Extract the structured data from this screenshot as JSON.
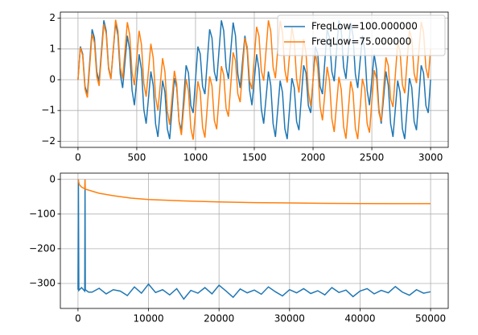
{
  "chart_data": [
    {
      "type": "line",
      "grid": true,
      "legend": "upper right",
      "x": [
        0,
        20,
        40,
        60,
        80,
        100,
        120,
        140,
        160,
        180,
        200,
        220,
        240,
        260,
        280,
        300,
        320,
        340,
        360,
        380,
        400,
        420,
        440,
        460,
        480,
        500,
        520,
        540,
        560,
        580,
        600,
        620,
        640,
        660,
        680,
        700,
        720,
        740,
        760,
        780,
        800,
        820,
        840,
        860,
        880,
        900,
        920,
        940,
        960,
        980,
        1000,
        1020,
        1040,
        1060,
        1080,
        1100,
        1120,
        1140,
        1160,
        1180,
        1200,
        1220,
        1240,
        1260,
        1280,
        1300,
        1320,
        1340,
        1360,
        1380,
        1400,
        1420,
        1440,
        1460,
        1480,
        1500,
        1520,
        1540,
        1560,
        1580,
        1600,
        1620,
        1640,
        1660,
        1680,
        1700,
        1720,
        1740,
        1760,
        1780,
        1800,
        1820,
        1840,
        1860,
        1880,
        1900,
        1920,
        1940,
        1960,
        1980,
        2000,
        2020,
        2040,
        2060,
        2080,
        2100,
        2120,
        2140,
        2160,
        2180,
        2200,
        2220,
        2240,
        2260,
        2280,
        2300,
        2320,
        2340,
        2360,
        2380,
        2400,
        2420,
        2440,
        2460,
        2480,
        2500,
        2520,
        2540,
        2560,
        2580,
        2600,
        2620,
        2640,
        2660,
        2680,
        2700,
        2720,
        2740,
        2760,
        2780,
        2800,
        2820,
        2840,
        2860,
        2880,
        2900,
        2920,
        2940,
        2960,
        2980,
        3000
      ],
      "series": [
        {
          "name": "FreqLow=100.000000",
          "color": "#1f77b4",
          "values": [
            0,
            1.08,
            0.84,
            -0.22,
            -0.47,
            0.59,
            1.64,
            1.36,
            0.26,
            -0.05,
            0.95,
            1.93,
            1.59,
            0.41,
            0.03,
            0.95,
            1.86,
            1.43,
            0.18,
            -0.27,
            0.59,
            1.43,
            0.96,
            -0.34,
            -0.83,
            0,
            0.83,
            0.34,
            -0.96,
            -1.43,
            -0.59,
            0.27,
            -0.18,
            -1.43,
            -1.86,
            -0.95,
            -0.03,
            -0.41,
            -1.59,
            -1.93,
            -0.95,
            0.05,
            -0.26,
            -1.36,
            -1.64,
            -0.59,
            0.47,
            0.22,
            -0.84,
            -1.08,
            0,
            1.08,
            0.84,
            -0.22,
            -0.47,
            0.59,
            1.64,
            1.36,
            0.26,
            -0.05,
            0.95,
            1.93,
            1.59,
            0.41,
            0.03,
            0.95,
            1.86,
            1.43,
            0.18,
            -0.27,
            0.59,
            1.43,
            0.96,
            -0.34,
            -0.83,
            0,
            0.83,
            0.34,
            -0.96,
            -1.43,
            -0.59,
            0.27,
            -0.18,
            -1.43,
            -1.86,
            -0.95,
            -0.03,
            -0.41,
            -1.59,
            -1.93,
            -0.95,
            0.05,
            -0.26,
            -1.36,
            -1.64,
            -0.59,
            0.47,
            0.22,
            -0.84,
            -1.08,
            0,
            1.08,
            0.84,
            -0.22,
            -0.47,
            0.59,
            1.64,
            1.36,
            0.26,
            -0.05,
            0.95,
            1.93,
            1.59,
            0.41,
            0.03,
            0.95,
            1.86,
            1.43,
            0.18,
            -0.27,
            0.59,
            1.43,
            0.96,
            -0.34,
            -0.83,
            0,
            0.83,
            0.34,
            -0.96,
            -1.43,
            -0.59,
            0.27,
            -0.18,
            -1.43,
            -1.86,
            -0.95,
            -0.03,
            -0.41,
            -1.59,
            -1.93,
            -0.95,
            0.05,
            -0.26,
            -1.36,
            -1.64,
            -0.59,
            0.47,
            0.22,
            -0.84,
            -1.08,
            0
          ]
        },
        {
          "name": "FreqLow=75.000000",
          "color": "#ff7f0e",
          "values": [
            0,
            1.05,
            0.78,
            -0.31,
            -0.58,
            0.45,
            1.49,
            1.2,
            0.1,
            -0.2,
            0.81,
            1.81,
            1.49,
            0.35,
            0.02,
            0.99,
            1.95,
            1.59,
            0.4,
            0.03,
            0.95,
            1.87,
            1.46,
            0.24,
            -0.18,
            0.71,
            1.59,
            1.15,
            -0.11,
            -0.55,
            0.31,
            1.17,
            0.71,
            -0.56,
            -1.01,
            -0.16,
            0.7,
            0.25,
            -1.01,
            -1.46,
            -0.59,
            0.29,
            -0.14,
            -1.38,
            -1.8,
            -0.89,
            0.02,
            -0.37,
            -1.57,
            -1.95,
            -1,
            -0.05,
            -0.39,
            -1.55,
            -1.88,
            -0.89,
            0.11,
            -0.2,
            -1.32,
            -1.61,
            -0.59,
            0.44,
            0.16,
            -0.93,
            -1.2,
            -0.16,
            0.89,
            0.62,
            -0.46,
            -0.73,
            0.31,
            1.35,
            1.07,
            -0.03,
            -0.31,
            0.71,
            1.72,
            1.42,
            0.29,
            -0.03,
            0.95,
            1.93,
            1.58,
            0.41,
            0.05,
            0.99,
            1.92,
            1.53,
            0.32,
            -0.09,
            0.81,
            1.7,
            1.27,
            0.03,
            -0.42,
            0.45,
            1.32,
            0.87,
            -0.4,
            -0.86,
            0,
            0.86,
            0.4,
            -0.87,
            -1.32,
            -0.45,
            0.42,
            -0.03,
            -1.27,
            -1.7,
            -0.81,
            0.09,
            -0.32,
            -1.53,
            -1.92,
            -0.99,
            -0.05,
            -0.41,
            -1.58,
            -1.93,
            -0.95,
            0.03,
            -0.29,
            -1.42,
            -1.72,
            -0.71,
            0.31,
            0.03,
            -1.07,
            -1.35,
            -0.31,
            0.73,
            0.46,
            -0.62,
            -0.89,
            0.16,
            1.2,
            0.93,
            -0.16,
            -0.44,
            0.59,
            1.61,
            1.32,
            0.2,
            -0.11,
            0.89,
            1.88,
            1.55,
            0.39,
            0.05,
            1
          ]
        }
      ],
      "xlim": [
        -150,
        3150
      ],
      "ylim": [
        -2.2,
        2.2
      ],
      "xticks": [
        0,
        500,
        1000,
        1500,
        2000,
        2500,
        3000
      ],
      "yticks": [
        {
          "value": -2,
          "label": "−2"
        },
        {
          "value": -1,
          "label": "−1"
        },
        0,
        1,
        2
      ]
    },
    {
      "type": "line",
      "grid": true,
      "series": [
        {
          "color": "#1f77b4",
          "x": [
            0,
            60,
            120,
            500,
            960,
            1000,
            1040,
            1500,
            2000,
            3000,
            4000,
            5000,
            6000,
            7000,
            8000,
            9000,
            10000,
            11000,
            12000,
            13000,
            14000,
            15000,
            16000,
            17000,
            18000,
            19000,
            20000,
            21000,
            22000,
            23000,
            24000,
            25000,
            26000,
            27000,
            28000,
            29000,
            30000,
            31000,
            32000,
            33000,
            34000,
            35000,
            36000,
            37000,
            38000,
            39000,
            40000,
            41000,
            42000,
            43000,
            44000,
            45000,
            46000,
            47000,
            48000,
            49000,
            50000
          ],
          "values": [
            -318,
            0,
            -320,
            -312,
            -322,
            0,
            -318,
            -325,
            -325,
            -314,
            -330,
            -318,
            -322,
            -335,
            -310,
            -328,
            -302,
            -326,
            -318,
            -333,
            -315,
            -345,
            -320,
            -328,
            -312,
            -330,
            -305,
            -322,
            -340,
            -316,
            -327,
            -319,
            -331,
            -310,
            -324,
            -336,
            -318,
            -327,
            -315,
            -329,
            -321,
            -333,
            -312,
            -326,
            -319,
            -338,
            -322,
            -315,
            -330,
            -320,
            -327,
            -309,
            -325,
            -334,
            -318,
            -328,
            -324
          ]
        },
        {
          "color": "#ff7f0e",
          "x": [
            0,
            200,
            500,
            960,
            1000,
            1040,
            2000,
            3000,
            5000,
            7500,
            10000,
            15000,
            20000,
            25000,
            30000,
            35000,
            40000,
            45000,
            50000
          ],
          "values": [
            0,
            -15,
            -22,
            -27,
            0,
            -28,
            -34,
            -40,
            -47,
            -54,
            -58,
            -62,
            -65,
            -67,
            -68,
            -69,
            -69.5,
            -70,
            -70
          ]
        }
      ],
      "xlim": [
        -2500,
        52500
      ],
      "ylim": [
        -372,
        18
      ],
      "xticks": [
        0,
        10000,
        20000,
        30000,
        40000,
        50000
      ],
      "yticks": [
        {
          "value": -300,
          "label": "−300"
        },
        {
          "value": -200,
          "label": "−200"
        },
        {
          "value": -100,
          "label": "−100"
        },
        0
      ]
    }
  ]
}
